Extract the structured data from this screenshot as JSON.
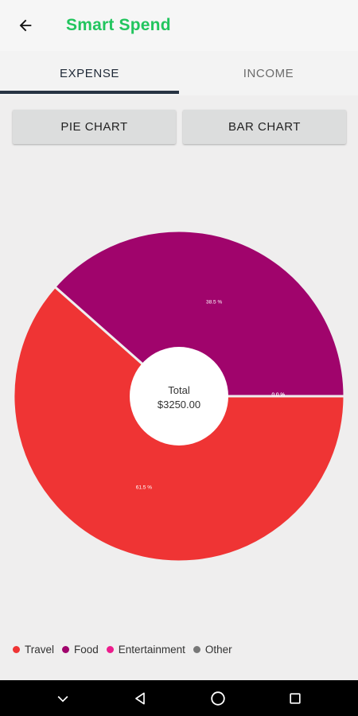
{
  "app_bar": {
    "title": "Smart Spend",
    "back_icon": "arrow-left-icon",
    "title_color": "#22c55e"
  },
  "tabs": [
    {
      "label": "EXPENSE",
      "active": true
    },
    {
      "label": "INCOME",
      "active": false
    }
  ],
  "chart_type_buttons": {
    "pie_label": "PIE CHART",
    "bar_label": "BAR CHART"
  },
  "chart_data": {
    "type": "pie",
    "center_label": "Total",
    "center_value": "$3250.00",
    "slices": [
      {
        "category": "Travel",
        "percent": 61.5,
        "label": "61.5 %",
        "color": "#ef3434"
      },
      {
        "category": "Food",
        "percent": 38.5,
        "label": "38.5 %",
        "color": "#a0046c"
      },
      {
        "category": "Entertainment",
        "percent": 0,
        "label": "0.0 %",
        "color": "#ec1c8c"
      },
      {
        "category": "Other",
        "percent": 0,
        "label": "0.0 %",
        "color": "#777777"
      }
    ],
    "legend": [
      {
        "label": "Travel",
        "color": "#ef3434"
      },
      {
        "label": "Food",
        "color": "#a0046c"
      },
      {
        "label": "Entertainment",
        "color": "#ec1c8c"
      },
      {
        "label": "Other",
        "color": "#777777"
      }
    ],
    "legend_placement": "bottom-left"
  },
  "nav_bar": {
    "icons": [
      "nav-back-icon",
      "home-icon",
      "recents-icon"
    ]
  }
}
